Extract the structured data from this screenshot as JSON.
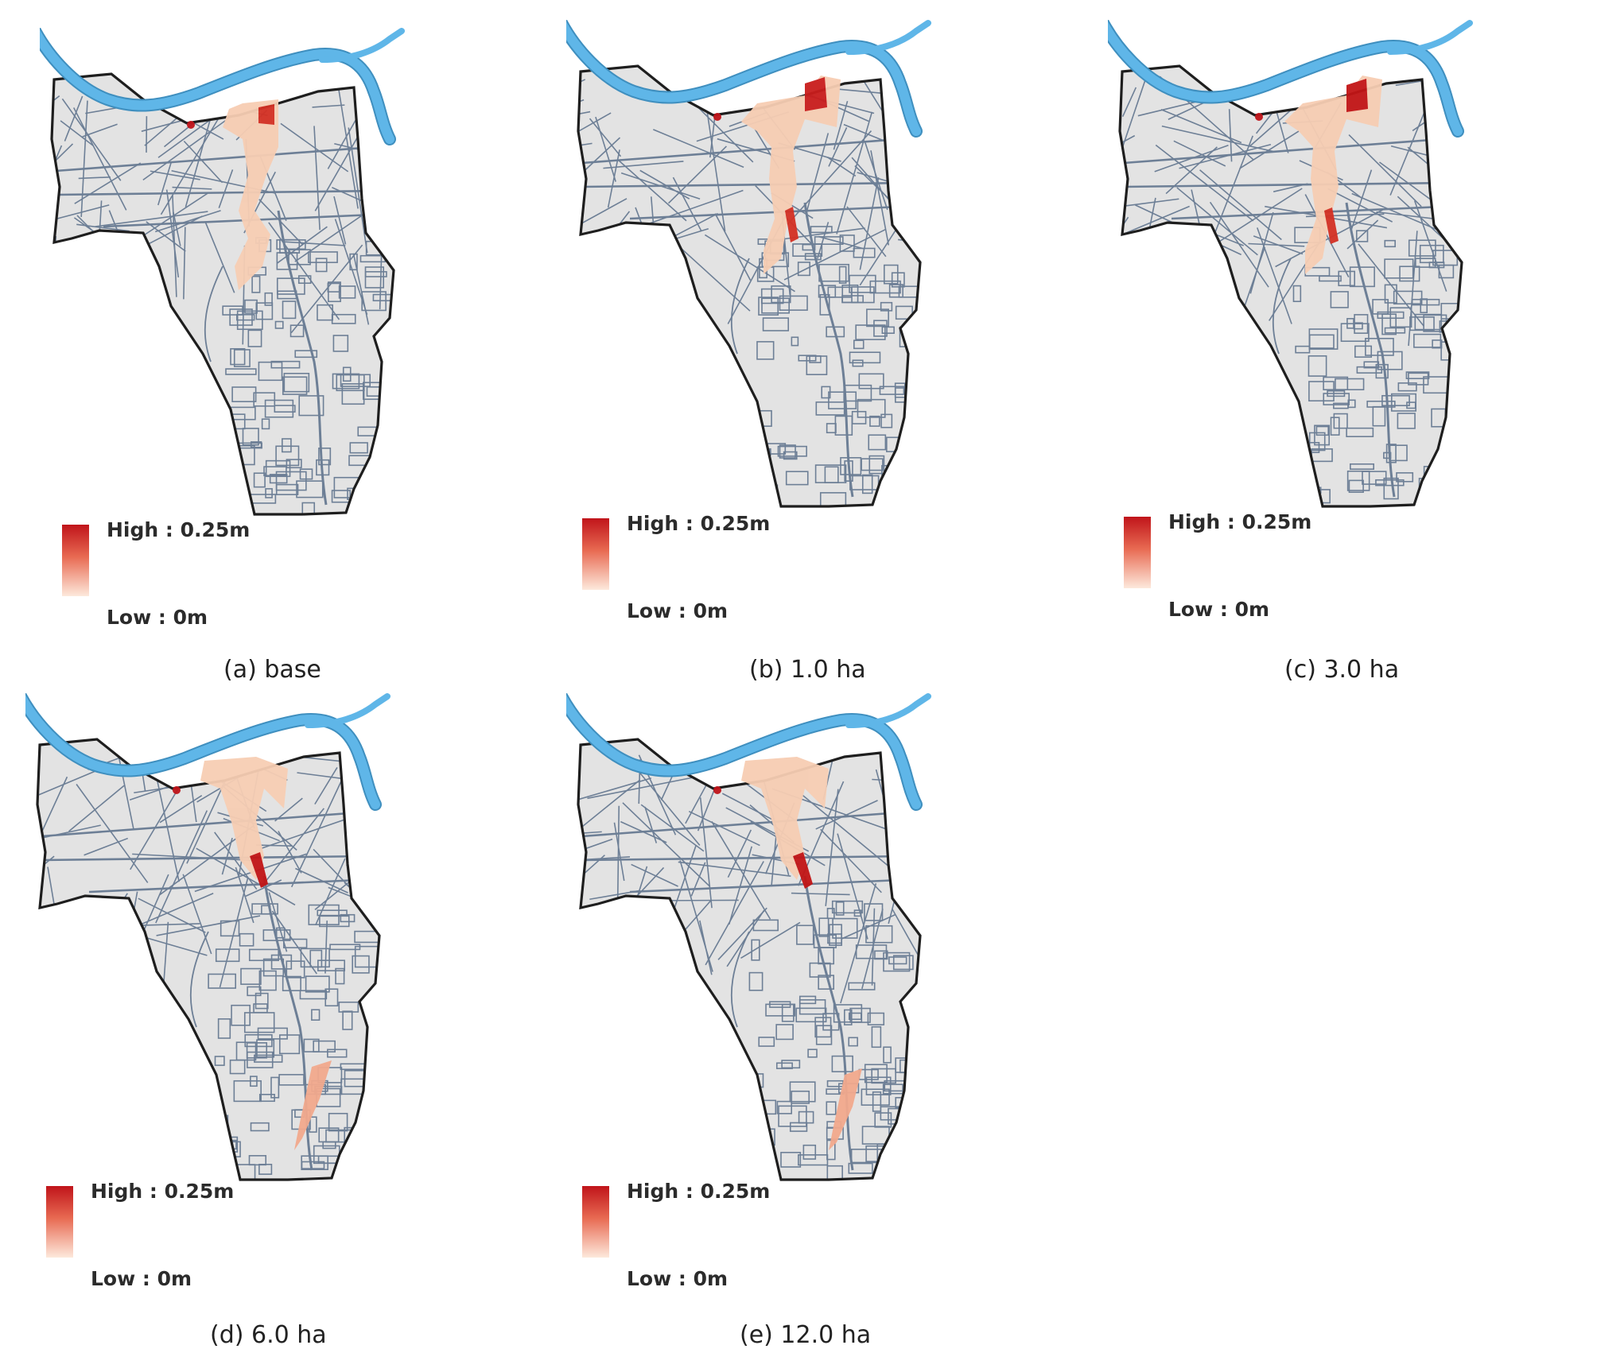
{
  "legend": {
    "high_label": "High : 0.25m",
    "low_label": "Low : 0m"
  },
  "colors": {
    "land": "#e3e3e3",
    "boundary": "#1e1e1e",
    "river": "#5fb6e8",
    "roads": "#6d7f96",
    "depth_high": "#c0141a",
    "depth_low": "#fde9dc"
  },
  "panels": [
    {
      "id": "a",
      "caption": "(a) base"
    },
    {
      "id": "b",
      "caption": "(b) 1.0 ha"
    },
    {
      "id": "c",
      "caption": "(c) 3.0 ha"
    },
    {
      "id": "d",
      "caption": "(d) 6.0 ha"
    },
    {
      "id": "e",
      "caption": "(e) 12.0 ha"
    }
  ]
}
